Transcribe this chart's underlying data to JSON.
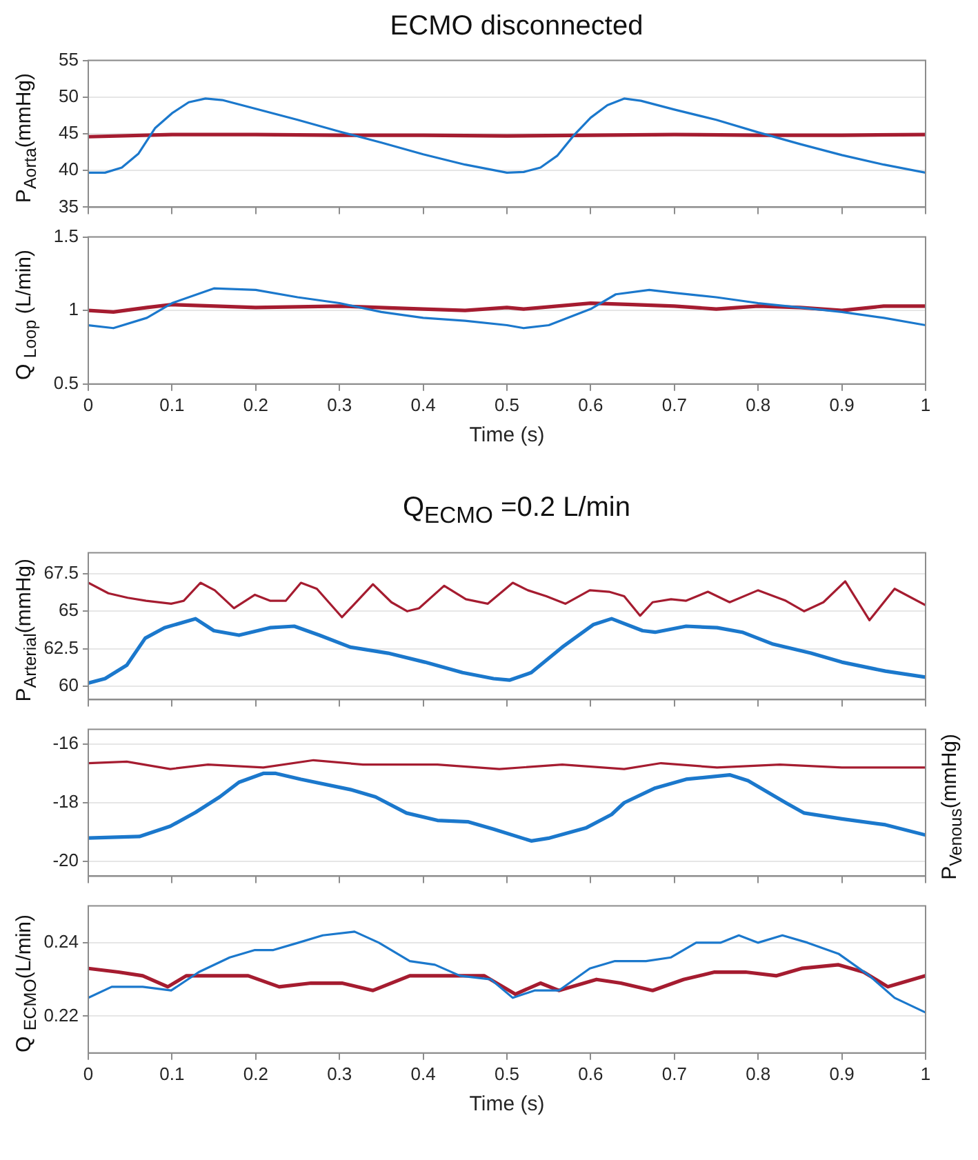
{
  "chart_data": [
    {
      "type": "line",
      "title": "ECMO disconnected",
      "ylabel": "P$_{Aorta}$(mmHg)",
      "xlim": [
        0,
        1
      ],
      "xticks": [
        0,
        0.1,
        0.2,
        0.3,
        0.4,
        0.5,
        0.6,
        0.7,
        0.8,
        0.9,
        1
      ],
      "ylim": [
        35,
        55
      ],
      "yticks": [
        35,
        40,
        45,
        50,
        55
      ],
      "grid": "y",
      "legend": false,
      "marker": "none",
      "tick_labels": "y",
      "series": [
        {
          "color": "#1b78cc",
          "x": [
            0,
            0.02,
            0.04,
            0.06,
            0.08,
            0.1,
            0.12,
            0.14,
            0.16,
            0.2,
            0.25,
            0.3,
            0.35,
            0.4,
            0.45,
            0.5,
            0.52,
            0.54,
            0.56,
            0.58,
            0.6,
            0.62,
            0.64,
            0.66,
            0.7,
            0.75,
            0.8,
            0.85,
            0.9,
            0.95,
            1
          ],
          "values": [
            39.7,
            39.7,
            40.4,
            42.3,
            45.8,
            47.8,
            49.3,
            49.8,
            49.6,
            48.4,
            46.9,
            45.3,
            43.8,
            42.2,
            40.8,
            39.7,
            39.8,
            40.4,
            42,
            44.8,
            47.2,
            48.9,
            49.8,
            49.5,
            48.3,
            46.9,
            45.2,
            43.6,
            42.1,
            40.8,
            39.7
          ]
        },
        {
          "color": "#a51c30",
          "x": [
            0,
            0.1,
            0.2,
            0.3,
            0.4,
            0.5,
            0.6,
            0.7,
            0.8,
            0.9,
            1
          ],
          "values": [
            44.6,
            44.9,
            44.9,
            44.8,
            44.8,
            44.7,
            44.8,
            44.9,
            44.8,
            44.8,
            44.9
          ]
        }
      ]
    },
    {
      "type": "line",
      "ylabel": "Q $_{Loop}$ (L/min)",
      "xlabel": "Time (s)",
      "xlim": [
        0,
        1
      ],
      "xticks": [
        0,
        0.1,
        0.2,
        0.3,
        0.4,
        0.5,
        0.6,
        0.7,
        0.8,
        0.9,
        1
      ],
      "ylim": [
        0.5,
        1.5
      ],
      "yticks": [
        0.5,
        1,
        1.5
      ],
      "grid": "y",
      "legend": false,
      "marker": "none",
      "series": [
        {
          "color": "#1b78cc",
          "x": [
            0,
            0.03,
            0.07,
            0.1,
            0.15,
            0.2,
            0.25,
            0.3,
            0.35,
            0.4,
            0.45,
            0.5,
            0.52,
            0.55,
            0.6,
            0.63,
            0.67,
            0.7,
            0.75,
            0.8,
            0.85,
            0.9,
            0.95,
            1
          ],
          "values": [
            0.9,
            0.88,
            0.95,
            1.05,
            1.15,
            1.14,
            1.09,
            1.05,
            0.99,
            0.95,
            0.93,
            0.9,
            0.88,
            0.9,
            1.01,
            1.11,
            1.14,
            1.12,
            1.09,
            1.05,
            1.02,
            0.99,
            0.95,
            0.9
          ]
        },
        {
          "color": "#a51c30",
          "x": [
            0,
            0.03,
            0.07,
            0.1,
            0.2,
            0.3,
            0.4,
            0.45,
            0.5,
            0.52,
            0.6,
            0.65,
            0.7,
            0.75,
            0.8,
            0.85,
            0.9,
            0.95,
            1
          ],
          "values": [
            1.0,
            0.99,
            1.02,
            1.04,
            1.02,
            1.03,
            1.01,
            1.0,
            1.02,
            1.01,
            1.05,
            1.04,
            1.03,
            1.01,
            1.03,
            1.02,
            1.0,
            1.03,
            1.03
          ]
        }
      ]
    },
    {
      "type": "line",
      "title": "Q$_{ECMO}$ =0.2 L/min",
      "ylabel": "P$_{Arterial}$(mmHg)",
      "xlim": [
        0,
        1
      ],
      "xticks": [
        0,
        0.1,
        0.2,
        0.3,
        0.4,
        0.5,
        0.6,
        0.7,
        0.8,
        0.9,
        1
      ],
      "ylim": [
        59.1,
        68.9
      ],
      "yticks": [
        60,
        62.5,
        65,
        67.5
      ],
      "grid": "y",
      "legend": false,
      "marker": "none",
      "tick_labels": "y",
      "series": [
        {
          "color": "#a51c30",
          "x": [
            0,
            0.024,
            0.047,
            0.069,
            0.099,
            0.114,
            0.134,
            0.151,
            0.174,
            0.199,
            0.217,
            0.236,
            0.254,
            0.273,
            0.303,
            0.34,
            0.362,
            0.381,
            0.395,
            0.425,
            0.451,
            0.477,
            0.507,
            0.525,
            0.547,
            0.57,
            0.599,
            0.622,
            0.64,
            0.659,
            0.674,
            0.696,
            0.714,
            0.74,
            0.766,
            0.8,
            0.833,
            0.855,
            0.878,
            0.904,
            0.933,
            0.963,
            1
          ],
          "values": [
            66.9,
            66.2,
            65.9,
            65.7,
            65.5,
            65.7,
            66.9,
            66.4,
            65.2,
            66.1,
            65.7,
            65.7,
            66.9,
            66.5,
            64.6,
            66.8,
            65.6,
            65.0,
            65.2,
            66.7,
            65.8,
            65.5,
            66.9,
            66.4,
            66.0,
            65.5,
            66.4,
            66.3,
            66.0,
            64.7,
            65.6,
            65.8,
            65.7,
            66.3,
            65.6,
            66.4,
            65.7,
            65.0,
            65.6,
            67.0,
            64.4,
            66.5,
            65.4
          ]
        },
        {
          "color": "#1b78cc",
          "x": [
            0,
            0.02,
            0.046,
            0.068,
            0.091,
            0.128,
            0.15,
            0.18,
            0.217,
            0.246,
            0.276,
            0.313,
            0.358,
            0.402,
            0.447,
            0.484,
            0.503,
            0.529,
            0.566,
            0.603,
            0.625,
            0.662,
            0.677,
            0.714,
            0.751,
            0.781,
            0.818,
            0.863,
            0.9,
            0.952,
            1
          ],
          "values": [
            60.2,
            60.5,
            61.4,
            63.2,
            63.9,
            64.5,
            63.7,
            63.4,
            63.9,
            64.0,
            63.4,
            62.6,
            62.2,
            61.6,
            60.9,
            60.5,
            60.4,
            60.9,
            62.6,
            64.1,
            64.5,
            63.7,
            63.6,
            64.0,
            63.9,
            63.6,
            62.8,
            62.2,
            61.6,
            61.0,
            60.6
          ]
        }
      ]
    },
    {
      "type": "line",
      "ylabel": "P$_{Venous}$(mmHg)",
      "xlim": [
        0,
        1
      ],
      "xticks": [
        0,
        0.1,
        0.2,
        0.3,
        0.4,
        0.5,
        0.6,
        0.7,
        0.8,
        0.9,
        1
      ],
      "ylim": [
        -20.5,
        -15.5
      ],
      "yticks": [
        -20,
        -18,
        -16
      ],
      "grid": "y",
      "legend": false,
      "marker": "none",
      "tick_labels": "y",
      "series": [
        {
          "color": "#a51c30",
          "x": [
            0,
            0.046,
            0.098,
            0.143,
            0.209,
            0.269,
            0.328,
            0.417,
            0.491,
            0.566,
            0.64,
            0.684,
            0.751,
            0.826,
            0.9,
            1
          ],
          "values": [
            -16.65,
            -16.6,
            -16.85,
            -16.7,
            -16.8,
            -16.55,
            -16.7,
            -16.7,
            -16.85,
            -16.7,
            -16.85,
            -16.65,
            -16.8,
            -16.7,
            -16.8,
            -16.8
          ]
        },
        {
          "color": "#1b78cc",
          "x": [
            0,
            0.061,
            0.098,
            0.128,
            0.157,
            0.18,
            0.209,
            0.224,
            0.254,
            0.313,
            0.343,
            0.38,
            0.417,
            0.454,
            0.484,
            0.529,
            0.551,
            0.595,
            0.625,
            0.64,
            0.677,
            0.714,
            0.766,
            0.788,
            0.833,
            0.855,
            0.9,
            0.952,
            1
          ],
          "values": [
            -19.2,
            -19.15,
            -18.8,
            -18.33,
            -17.8,
            -17.3,
            -17.0,
            -17.0,
            -17.2,
            -17.55,
            -17.8,
            -18.35,
            -18.6,
            -18.65,
            -18.9,
            -19.3,
            -19.2,
            -18.85,
            -18.4,
            -18.0,
            -17.5,
            -17.2,
            -17.05,
            -17.25,
            -18.0,
            -18.35,
            -18.55,
            -18.75,
            -19.1
          ]
        }
      ]
    },
    {
      "type": "line",
      "ylabel": "Q $_{ECMO}$(L/min)",
      "xlabel": "Time (s)",
      "xlim": [
        0,
        1
      ],
      "xticks": [
        0,
        0.1,
        0.2,
        0.3,
        0.4,
        0.5,
        0.6,
        0.7,
        0.8,
        0.9,
        1
      ],
      "ylim": [
        0.21,
        0.25
      ],
      "yticks": [
        0.22,
        0.24
      ],
      "grid": "y",
      "legend": false,
      "marker": "none",
      "series": [
        {
          "color": "#1b78cc",
          "x": [
            0,
            0.028,
            0.065,
            0.099,
            0.132,
            0.169,
            0.199,
            0.221,
            0.251,
            0.28,
            0.318,
            0.347,
            0.384,
            0.414,
            0.444,
            0.481,
            0.507,
            0.533,
            0.562,
            0.599,
            0.629,
            0.666,
            0.696,
            0.726,
            0.755,
            0.777,
            0.8,
            0.829,
            0.859,
            0.896,
            0.933,
            0.963,
            1
          ],
          "values": [
            0.225,
            0.228,
            0.228,
            0.227,
            0.232,
            0.236,
            0.238,
            0.238,
            0.24,
            0.242,
            0.243,
            0.24,
            0.235,
            0.234,
            0.231,
            0.23,
            0.225,
            0.227,
            0.227,
            0.233,
            0.235,
            0.235,
            0.236,
            0.24,
            0.24,
            0.242,
            0.24,
            0.242,
            0.24,
            0.237,
            0.231,
            0.225,
            0.221
          ]
        },
        {
          "color": "#a51c30",
          "x": [
            0,
            0.036,
            0.065,
            0.095,
            0.117,
            0.162,
            0.191,
            0.228,
            0.266,
            0.303,
            0.34,
            0.384,
            0.429,
            0.473,
            0.51,
            0.54,
            0.562,
            0.607,
            0.636,
            0.674,
            0.711,
            0.748,
            0.785,
            0.822,
            0.852,
            0.896,
            0.926,
            0.955,
            1
          ],
          "values": [
            0.233,
            0.232,
            0.231,
            0.228,
            0.231,
            0.231,
            0.231,
            0.228,
            0.229,
            0.229,
            0.227,
            0.231,
            0.231,
            0.231,
            0.226,
            0.229,
            0.227,
            0.23,
            0.229,
            0.227,
            0.23,
            0.232,
            0.232,
            0.231,
            0.233,
            0.234,
            0.232,
            0.228,
            0.231
          ]
        }
      ]
    }
  ]
}
